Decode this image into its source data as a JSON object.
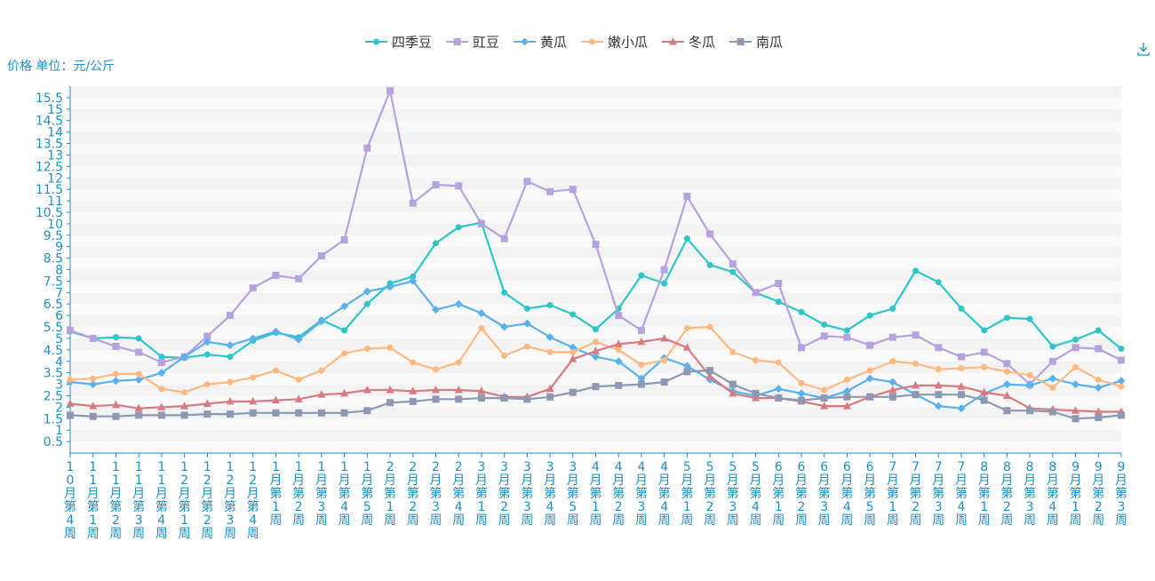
{
  "chart_data": {
    "type": "line",
    "ylabel": "价格 单位：元/公斤",
    "ylim": [
      0,
      16
    ],
    "y_ticks": [
      "0.5",
      "1",
      "1.5",
      "2",
      "2.5",
      "3",
      "3.5",
      "4",
      "4.5",
      "5",
      "5.5",
      "6",
      "6.5",
      "7",
      "7.5",
      "8",
      "8.5",
      "9",
      "9.5",
      "10",
      "10.5",
      "11",
      "11.5",
      "12",
      "12.5",
      "13",
      "13.5",
      "14",
      "14.5",
      "15",
      "15.5"
    ],
    "legend_position": "top-center",
    "grid": true,
    "categories": [
      "10月第4周",
      "11月第1周",
      "11月第2周",
      "11月第3周",
      "11月第4周",
      "12月第1周",
      "12月第2周",
      "12月第3周",
      "12月第4周",
      "1月第1周",
      "1月第2周",
      "1月第3周",
      "1月第4周",
      "1月第5周",
      "2月第1周",
      "2月第2周",
      "2月第3周",
      "2月第4周",
      "3月第1周",
      "3月第2周",
      "3月第3周",
      "3月第4周",
      "3月第5周",
      "4月第1周",
      "4月第2周",
      "4月第3周",
      "4月第4周",
      "5月第1周",
      "5月第2周",
      "5月第3周",
      "5月第4周",
      "6月第1周",
      "6月第2周",
      "6月第3周",
      "6月第4周",
      "6月第5周",
      "7月第1周",
      "7月第2周",
      "7月第3周",
      "7月第4周",
      "8月第1周",
      "8月第2周",
      "8月第3周",
      "8月第4周",
      "9月第1周",
      "9月第2周",
      "9月第3周"
    ],
    "series": [
      {
        "name": "四季豆",
        "color": "#2ec7c9",
        "symbol": "circle",
        "values": [
          5.3,
          5.0,
          5.05,
          5.0,
          4.2,
          4.15,
          4.3,
          4.2,
          4.9,
          5.25,
          5.05,
          5.8,
          5.35,
          6.5,
          7.4,
          7.7,
          9.15,
          9.85,
          10.05,
          7.0,
          6.3,
          6.45,
          6.05,
          5.4,
          6.3,
          7.75,
          7.4,
          9.35,
          8.2,
          7.9,
          7.0,
          6.6,
          6.15,
          5.6,
          5.35,
          6.0,
          6.3,
          7.95,
          7.45,
          6.3,
          5.35,
          5.9,
          5.85,
          4.65,
          4.95,
          5.35,
          4.55
        ]
      },
      {
        "name": "豇豆",
        "color": "#b6a2de",
        "symbol": "rect",
        "values": [
          5.35,
          5.0,
          4.65,
          4.4,
          3.95,
          4.2,
          5.1,
          6.0,
          7.2,
          7.75,
          7.6,
          8.6,
          9.3,
          13.3,
          15.8,
          10.9,
          11.7,
          11.65,
          10.0,
          9.35,
          11.85,
          11.4,
          11.5,
          9.1,
          6.0,
          5.35,
          8.0,
          11.2,
          9.55,
          8.25,
          7.0,
          7.4,
          4.6,
          5.1,
          5.05,
          4.7,
          5.05,
          5.15,
          4.6,
          4.2,
          4.4,
          3.9,
          3.0,
          4.0,
          4.6,
          4.55,
          4.05
        ]
      },
      {
        "name": "黄瓜",
        "color": "#5ab1ef",
        "symbol": "diamond",
        "values": [
          3.1,
          3.0,
          3.15,
          3.2,
          3.5,
          4.2,
          4.85,
          4.7,
          5.0,
          5.3,
          4.95,
          5.75,
          6.4,
          7.05,
          7.25,
          7.5,
          6.25,
          6.5,
          6.1,
          5.5,
          5.65,
          5.05,
          4.6,
          4.2,
          4.0,
          3.25,
          4.15,
          3.8,
          3.2,
          2.7,
          2.5,
          2.8,
          2.6,
          2.4,
          2.7,
          3.25,
          3.1,
          2.55,
          2.05,
          1.95,
          2.6,
          3.0,
          2.95,
          3.25,
          3.0,
          2.85,
          3.15
        ]
      },
      {
        "name": "嫩小瓜",
        "color": "#ffb980",
        "symbol": "circle",
        "values": [
          3.2,
          3.25,
          3.45,
          3.45,
          2.8,
          2.65,
          3.0,
          3.1,
          3.3,
          3.6,
          3.2,
          3.6,
          4.35,
          4.55,
          4.6,
          3.95,
          3.65,
          3.95,
          5.45,
          4.25,
          4.65,
          4.4,
          4.4,
          4.85,
          4.5,
          3.85,
          4.05,
          5.45,
          5.5,
          4.4,
          4.05,
          3.95,
          3.05,
          2.75,
          3.2,
          3.6,
          4.0,
          3.9,
          3.65,
          3.7,
          3.75,
          3.55,
          3.4,
          2.85,
          3.75,
          3.2,
          2.9
        ]
      },
      {
        "name": "冬瓜",
        "color": "#d87a80",
        "symbol": "triangle",
        "values": [
          2.15,
          2.05,
          2.1,
          1.95,
          2.0,
          2.05,
          2.15,
          2.25,
          2.25,
          2.3,
          2.35,
          2.55,
          2.6,
          2.75,
          2.75,
          2.7,
          2.75,
          2.75,
          2.7,
          2.45,
          2.45,
          2.8,
          4.1,
          4.45,
          4.75,
          4.85,
          5.0,
          4.6,
          3.35,
          2.6,
          2.4,
          2.4,
          2.25,
          2.05,
          2.05,
          2.45,
          2.75,
          2.95,
          2.95,
          2.9,
          2.65,
          2.5,
          1.95,
          1.9,
          1.85,
          1.8,
          1.8
        ]
      },
      {
        "name": "南瓜",
        "color": "#8d98b3",
        "symbol": "rect",
        "values": [
          1.65,
          1.6,
          1.6,
          1.65,
          1.65,
          1.65,
          1.7,
          1.7,
          1.75,
          1.75,
          1.75,
          1.75,
          1.75,
          1.85,
          2.2,
          2.25,
          2.35,
          2.35,
          2.4,
          2.4,
          2.35,
          2.45,
          2.65,
          2.9,
          2.95,
          3.0,
          3.1,
          3.55,
          3.6,
          3.0,
          2.6,
          2.4,
          2.3,
          2.4,
          2.45,
          2.45,
          2.45,
          2.55,
          2.55,
          2.55,
          2.3,
          1.85,
          1.85,
          1.8,
          1.5,
          1.55,
          1.65
        ]
      }
    ]
  },
  "icons": {
    "download": "download-icon"
  }
}
